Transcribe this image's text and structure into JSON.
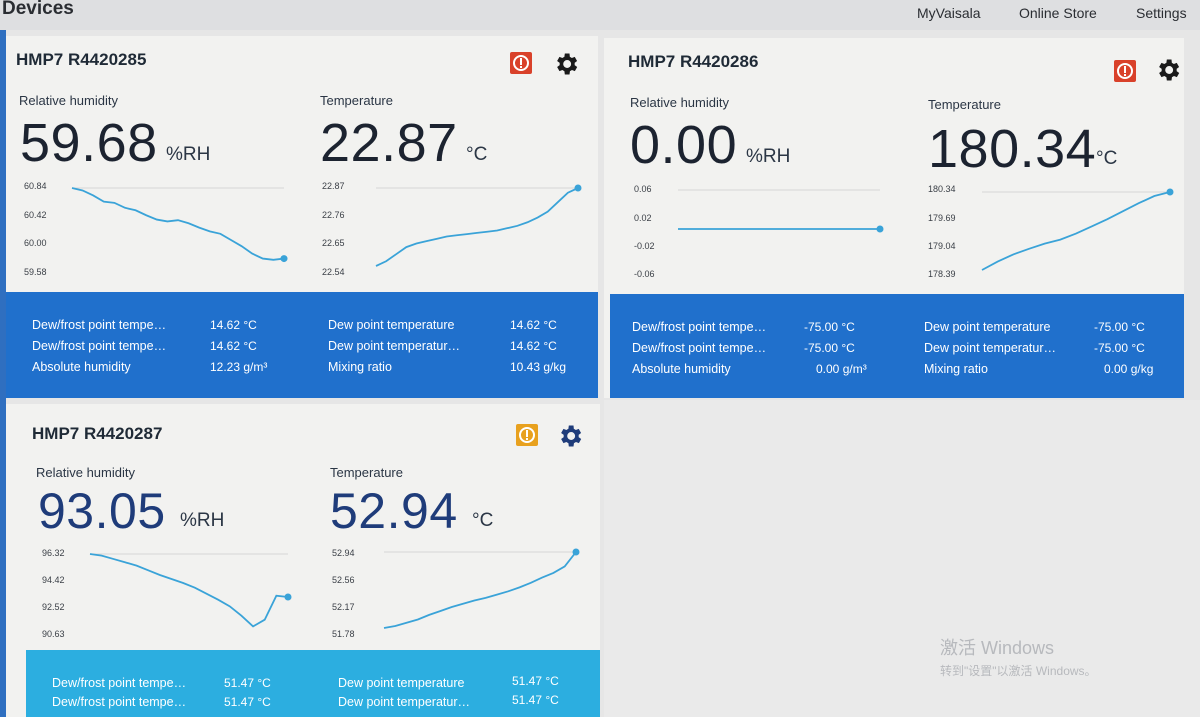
{
  "header": {
    "title": "Devices",
    "nav": [
      "MyVaisala",
      "Online Store",
      "Settings"
    ]
  },
  "devices": [
    {
      "name": "HMP7 R4420285",
      "alert": "red",
      "rh_label": "Relative humidity",
      "rh_value": "59.68",
      "rh_unit": "%RH",
      "t_label": "Temperature",
      "t_value": "22.87",
      "t_unit": "°C",
      "rh_chart": {
        "ticks": [
          "60.84",
          "60.42",
          "60.00",
          "59.58"
        ],
        "ylim": [
          59.58,
          60.84
        ],
        "values": [
          60.84,
          60.8,
          60.72,
          60.62,
          60.6,
          60.52,
          60.48,
          60.4,
          60.33,
          60.3,
          60.32,
          60.27,
          60.2,
          60.14,
          60.1,
          60.0,
          59.9,
          59.78,
          59.7,
          59.68,
          59.7
        ]
      },
      "t_chart": {
        "ticks": [
          "22.87",
          "22.76",
          "22.65",
          "22.54"
        ],
        "ylim": [
          22.54,
          22.87
        ],
        "values": [
          22.54,
          22.56,
          22.59,
          22.62,
          22.635,
          22.645,
          22.655,
          22.665,
          22.67,
          22.675,
          22.68,
          22.685,
          22.69,
          22.7,
          22.71,
          22.725,
          22.745,
          22.77,
          22.81,
          22.85,
          22.87
        ]
      },
      "stats": [
        {
          "label": "Dew/frost point tempe…",
          "value": "14.62 °C"
        },
        {
          "label": "Dew/frost point tempe…",
          "value": "14.62 °C"
        },
        {
          "label": "Absolute humidity",
          "value": "12.23 g/m³"
        },
        {
          "label": "Dew point temperature",
          "value": "14.62 °C"
        },
        {
          "label": "Dew point temperatur…",
          "value": "14.62 °C"
        },
        {
          "label": "Mixing ratio",
          "value": "10.43 g/kg"
        }
      ]
    },
    {
      "name": "HMP7 R4420286",
      "alert": "red",
      "rh_label": "Relative humidity",
      "rh_value": "0.00",
      "rh_unit": "%RH",
      "t_label": "Temperature",
      "t_value": "180.34",
      "t_unit": "°C",
      "rh_chart": {
        "ticks": [
          "0.06",
          "0.02",
          "-0.02",
          "-0.06"
        ],
        "ylim": [
          -0.06,
          0.06
        ],
        "values": [
          0,
          0,
          0,
          0,
          0,
          0,
          0,
          0,
          0,
          0,
          0
        ]
      },
      "t_chart": {
        "ticks": [
          "180.34",
          "179.69",
          "179.04",
          "178.39"
        ],
        "ylim": [
          178.39,
          180.34
        ],
        "values": [
          178.39,
          178.6,
          178.78,
          178.92,
          179.05,
          179.15,
          179.3,
          179.48,
          179.66,
          179.86,
          180.06,
          180.24,
          180.34
        ]
      },
      "stats": [
        {
          "label": "Dew/frost point tempe…",
          "value": "-75.00 °C"
        },
        {
          "label": "Dew/frost point tempe…",
          "value": "-75.00 °C"
        },
        {
          "label": "Absolute humidity",
          "value": "0.00 g/m³"
        },
        {
          "label": "Dew point temperature",
          "value": "-75.00 °C"
        },
        {
          "label": "Dew point temperatur…",
          "value": "-75.00 °C"
        },
        {
          "label": "Mixing ratio",
          "value": "0.00 g/kg"
        }
      ]
    },
    {
      "name": "HMP7 R4420287",
      "alert": "orange",
      "rh_label": "Relative humidity",
      "rh_value": "93.05",
      "rh_unit": "%RH",
      "t_label": "Temperature",
      "t_value": "52.94",
      "t_unit": "°C",
      "rh_chart": {
        "ticks": [
          "96.32",
          "94.42",
          "92.52",
          "90.63"
        ],
        "ylim": [
          90.63,
          96.32
        ],
        "values": [
          96.32,
          96.2,
          95.95,
          95.7,
          95.45,
          95.1,
          94.75,
          94.45,
          94.15,
          93.8,
          93.35,
          92.9,
          92.4,
          91.7,
          90.9,
          91.4,
          93.2,
          93.1
        ]
      },
      "t_chart": {
        "ticks": [
          "52.94",
          "52.56",
          "52.17",
          "51.78"
        ],
        "ylim": [
          51.78,
          52.94
        ],
        "values": [
          51.78,
          51.81,
          51.86,
          51.91,
          51.98,
          52.04,
          52.1,
          52.15,
          52.2,
          52.24,
          52.29,
          52.34,
          52.4,
          52.47,
          52.55,
          52.62,
          52.72,
          52.94
        ]
      },
      "stats": [
        {
          "label": "Dew/frost point tempe…",
          "value": "51.47 °C"
        },
        {
          "label": "Dew/frost point tempe…",
          "value": "51.47 °C"
        },
        {
          "label": "Dew point temperature",
          "value": "51.47 °C"
        },
        {
          "label": "Dew point temperatur…",
          "value": "51.47 °C"
        }
      ]
    }
  ],
  "colors": {
    "accent": "#2070cc",
    "panel_alt": "#2caee0",
    "line": "#3aa3d8",
    "alert_red": "#d9412a",
    "alert_orange": "#e8a11e",
    "gear_dark": "#1a1a1a",
    "gear_blue": "#1f3c7a"
  },
  "watermark": {
    "line1": "激活 Windows",
    "line2": "转到\"设置\"以激活 Windows。"
  }
}
